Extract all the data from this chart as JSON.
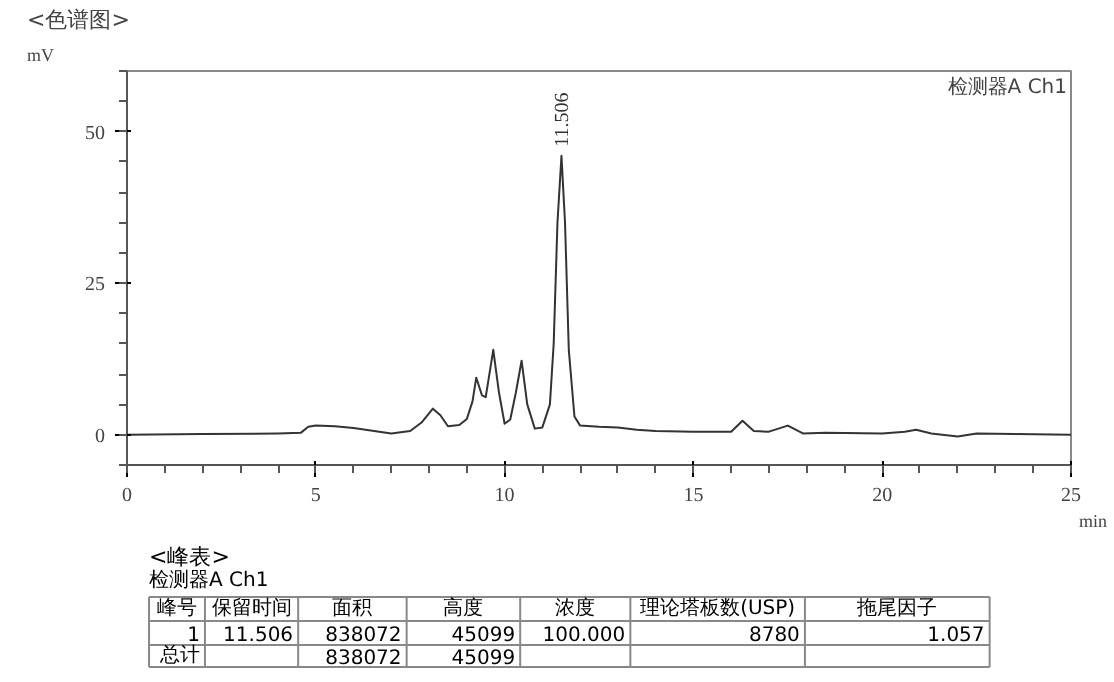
{
  "chart_data": {
    "type": "line",
    "title": "<色谱图>",
    "ylabel": "mV",
    "xlabel": "min",
    "x": [
      0,
      2,
      4,
      4.6,
      4.8,
      5.0,
      5.5,
      6.0,
      7.0,
      7.5,
      7.8,
      8.1,
      8.3,
      8.5,
      8.8,
      9.0,
      9.15,
      9.25,
      9.4,
      9.5,
      9.7,
      9.85,
      10.0,
      10.15,
      10.3,
      10.45,
      10.6,
      10.8,
      11.0,
      11.2,
      11.3,
      11.4,
      11.506,
      11.6,
      11.7,
      11.85,
      12.0,
      12.5,
      13.0,
      13.5,
      14.0,
      15.0,
      16.0,
      16.3,
      16.6,
      17.0,
      17.5,
      17.9,
      18.5,
      20.0,
      20.6,
      20.9,
      21.3,
      22.0,
      22.5,
      23.5,
      25
    ],
    "series": [
      {
        "color": "#333333",
        "values": [
          0,
          0.1,
          0.2,
          0.3,
          1.3,
          1.5,
          1.4,
          1.1,
          0.2,
          0.6,
          2.0,
          4.3,
          3.2,
          1.4,
          1.6,
          2.6,
          5.5,
          9.4,
          6.5,
          6.2,
          14.0,
          7.0,
          1.8,
          2.5,
          7.0,
          12.2,
          5.0,
          1.0,
          1.2,
          5.0,
          15.0,
          35.0,
          46.0,
          35.0,
          14.0,
          3.0,
          1.5,
          1.3,
          1.2,
          0.8,
          0.6,
          0.5,
          0.5,
          2.3,
          0.6,
          0.5,
          1.5,
          0.2,
          0.3,
          0.2,
          0.5,
          0.8,
          0.2,
          -0.3,
          0.2,
          0.1,
          0
        ]
      }
    ],
    "xlim": [
      0,
      25
    ],
    "xticks": [
      0,
      5,
      10,
      15,
      20,
      25
    ],
    "ylim": [
      -5,
      60
    ],
    "yticks": [
      0,
      25,
      50
    ],
    "line_style": "solid",
    "grid": false,
    "annotations": [
      {
        "text": "11.506",
        "x": 11.506,
        "y": 46.0
      },
      "检测器A Ch1",
      "<峰表>",
      "检测器A Ch1",
      "峰号",
      "保留时间",
      "面积",
      "高度",
      "浓度",
      "理论塔板数(USP)",
      "拖尾因子",
      "1",
      "11.506",
      "838072",
      "45099",
      "100.000",
      "8780",
      "1.057",
      "总计",
      "838072",
      "45099"
    ]
  }
}
